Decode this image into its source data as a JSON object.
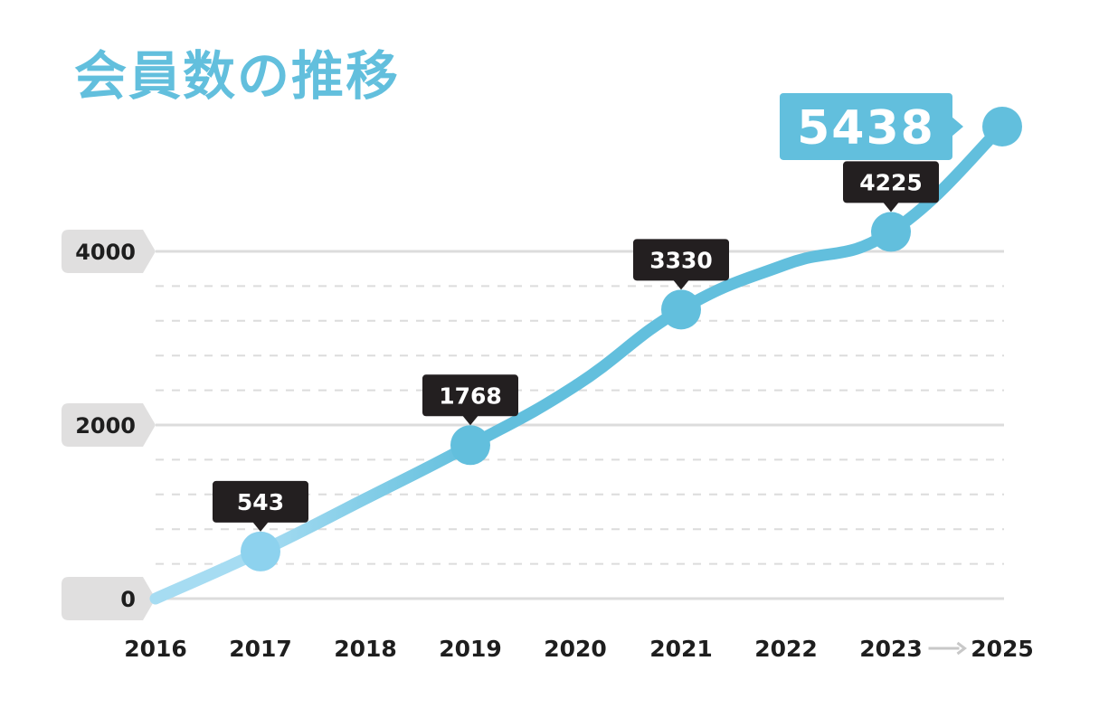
{
  "chart_data": {
    "type": "line",
    "title": "会員数の推移",
    "categories": [
      "2016",
      "2017",
      "2018",
      "2019",
      "2020",
      "2021",
      "2022",
      "2023",
      "2025"
    ],
    "values": [
      0,
      543,
      1150,
      1768,
      2450,
      3330,
      3850,
      4225,
      5438
    ],
    "data_labels": [
      {
        "category": "2017",
        "text": "543"
      },
      {
        "category": "2019",
        "text": "1768"
      },
      {
        "category": "2021",
        "text": "3330"
      },
      {
        "category": "2023",
        "text": "4225"
      }
    ],
    "highlight": {
      "category": "2025",
      "text": "5438"
    },
    "y_ticks": [
      {
        "value": 0,
        "label": "0"
      },
      {
        "value": 2000,
        "label": "2000"
      },
      {
        "value": 4000,
        "label": "4000"
      }
    ],
    "minor_gridlines": [
      400,
      800,
      1200,
      1600,
      2400,
      2800,
      3200,
      3600
    ],
    "ylim": [
      0,
      5438
    ],
    "x_break_symbol": "→",
    "grid": true,
    "xlabel": "",
    "ylabel": ""
  },
  "colors": {
    "accent": "#62bfdd",
    "accent_light": "#a6dcf2",
    "label_bg": "#231f20",
    "tick_bg": "#e0dfdf",
    "grid": "#dcdcdc",
    "text": "#1e1e1e"
  }
}
